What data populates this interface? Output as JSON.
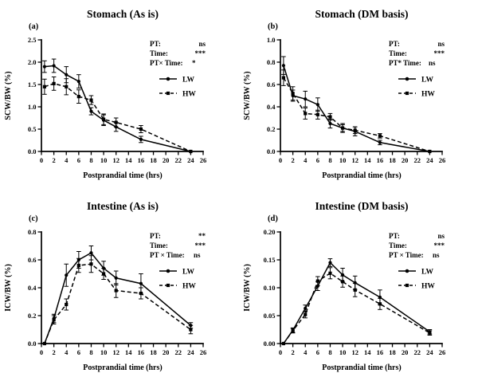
{
  "colors": {
    "line": "#000000",
    "background": "#ffffff"
  },
  "figure": {
    "panels": [
      {
        "letter": "(a)",
        "title": "Stomach (As is)",
        "ylabel": "SCW/BW (%)",
        "xlabel": "Postprandial time (hrs)",
        "stats": [
          {
            "label": "PT:",
            "value": "ns"
          },
          {
            "label": "Time:",
            "value": "***"
          },
          {
            "label": "PT× Time:",
            "value": "*"
          }
        ],
        "legend": [
          {
            "label": "LW"
          },
          {
            "label": "HW"
          }
        ]
      },
      {
        "letter": "(b)",
        "title": "Stomach (DM basis)",
        "ylabel": "SCW/BW (%)",
        "xlabel": "Postprandial time (hrs)",
        "stats": [
          {
            "label": "PT:",
            "value": "ns"
          },
          {
            "label": "Time:",
            "value": "***"
          },
          {
            "label": "PT* Time:",
            "value": "ns"
          }
        ],
        "legend": [
          {
            "label": "LW"
          },
          {
            "label": "HW"
          }
        ]
      },
      {
        "letter": "(c)",
        "title": "Intestine (As is)",
        "ylabel": "ICW/BW (%)",
        "xlabel": "Postprandial time (hrs)",
        "stats": [
          {
            "label": "PT:",
            "value": "**"
          },
          {
            "label": "Time:",
            "value": "***"
          },
          {
            "label": "PT × Time:",
            "value": "ns"
          }
        ],
        "legend": [
          {
            "label": "LW"
          },
          {
            "label": "HW"
          }
        ]
      },
      {
        "letter": "(d)",
        "title": "Intestine (DM basis)",
        "ylabel": "ICW/BW (%)",
        "xlabel": "Postprandial time (hrs)",
        "stats": [
          {
            "label": "PT:",
            "value": "ns"
          },
          {
            "label": "Time:",
            "value": "***"
          },
          {
            "label": "PT × Time:",
            "value": "ns"
          }
        ],
        "legend": [
          {
            "label": "LW"
          },
          {
            "label": "HW"
          }
        ]
      }
    ]
  },
  "chart_data": [
    {
      "type": "line",
      "title": "Stomach (As is)",
      "xlabel": "Postprandial time (hrs)",
      "ylabel": "SCW/BW (%)",
      "xlim": [
        0,
        26
      ],
      "ylim": [
        0,
        2.5
      ],
      "xticks": [
        0,
        2,
        4,
        6,
        8,
        10,
        12,
        14,
        16,
        18,
        20,
        22,
        24,
        26
      ],
      "yticks": [
        0,
        0.5,
        1.0,
        1.5,
        2.0,
        2.5
      ],
      "ytick_labels": [
        "0.0",
        "0.5",
        "1.0",
        "1.5",
        "2.0",
        "2.5"
      ],
      "grid": false,
      "legend_position": "upper right",
      "annotations": {
        "PT": "ns",
        "Time": "***",
        "PTxTime": "*"
      },
      "x": [
        0.5,
        2,
        4,
        6,
        8,
        10,
        12,
        16,
        24
      ],
      "series": [
        {
          "name": "LW",
          "line": "solid",
          "marker": "circle",
          "values": [
            1.9,
            1.92,
            1.72,
            1.57,
            0.9,
            0.7,
            0.55,
            0.27,
            0.0
          ],
          "errors": [
            0.13,
            0.15,
            0.18,
            0.15,
            0.08,
            0.12,
            0.1,
            0.07,
            0.0
          ]
        },
        {
          "name": "HW",
          "line": "dashed",
          "marker": "square",
          "values": [
            1.45,
            1.52,
            1.45,
            1.23,
            1.15,
            0.72,
            0.65,
            0.5,
            0.0
          ],
          "errors": [
            0.17,
            0.15,
            0.18,
            0.15,
            0.1,
            0.12,
            0.1,
            0.08,
            0.0
          ]
        }
      ]
    },
    {
      "type": "line",
      "title": "Stomach (DM basis)",
      "xlabel": "Postprandial time (hrs)",
      "ylabel": "SCW/BW (%)",
      "xlim": [
        0,
        26
      ],
      "ylim": [
        0,
        1.0
      ],
      "xticks": [
        0,
        2,
        4,
        6,
        8,
        10,
        12,
        14,
        16,
        18,
        20,
        22,
        24,
        26
      ],
      "yticks": [
        0,
        0.2,
        0.4,
        0.6,
        0.8,
        1.0
      ],
      "ytick_labels": [
        "0.0",
        "0.2",
        "0.4",
        "0.6",
        "0.8",
        "1.0"
      ],
      "grid": false,
      "legend_position": "upper right",
      "annotations": {
        "PT": "ns",
        "Time": "***",
        "PTxTime": "ns"
      },
      "x": [
        0.5,
        2,
        4,
        6,
        8,
        10,
        12,
        16,
        24
      ],
      "series": [
        {
          "name": "LW",
          "line": "solid",
          "marker": "circle",
          "values": [
            0.77,
            0.5,
            0.47,
            0.42,
            0.25,
            0.21,
            0.18,
            0.08,
            0.0
          ],
          "errors": [
            0.08,
            0.05,
            0.07,
            0.06,
            0.04,
            0.04,
            0.04,
            0.02,
            0.0
          ]
        },
        {
          "name": "HW",
          "line": "dashed",
          "marker": "square",
          "values": [
            0.66,
            0.52,
            0.34,
            0.33,
            0.31,
            0.21,
            0.19,
            0.14,
            0.0
          ],
          "errors": [
            0.07,
            0.06,
            0.05,
            0.04,
            0.03,
            0.03,
            0.03,
            0.02,
            0.0
          ]
        }
      ]
    },
    {
      "type": "line",
      "title": "Intestine (As is)",
      "xlabel": "Postprandial time (hrs)",
      "ylabel": "ICW/BW (%)",
      "xlim": [
        0,
        26
      ],
      "ylim": [
        0,
        0.8
      ],
      "xticks": [
        0,
        2,
        4,
        6,
        8,
        10,
        12,
        14,
        16,
        18,
        20,
        22,
        24,
        26
      ],
      "yticks": [
        0,
        0.2,
        0.4,
        0.6,
        0.8
      ],
      "ytick_labels": [
        "0.0",
        "0.2",
        "0.4",
        "0.6",
        "0.8"
      ],
      "grid": false,
      "legend_position": "upper right",
      "annotations": {
        "PT": "**",
        "Time": "***",
        "PTxTime": "ns"
      },
      "x": [
        0.5,
        2,
        4,
        6,
        8,
        10,
        12,
        16,
        24
      ],
      "series": [
        {
          "name": "LW",
          "line": "solid",
          "marker": "circle",
          "values": [
            0.0,
            0.18,
            0.49,
            0.6,
            0.65,
            0.54,
            0.47,
            0.43,
            0.13
          ],
          "errors": [
            0.0,
            0.03,
            0.08,
            0.06,
            0.05,
            0.05,
            0.05,
            0.07,
            0.02
          ]
        },
        {
          "name": "HW",
          "line": "dashed",
          "marker": "square",
          "values": [
            0.0,
            0.17,
            0.28,
            0.56,
            0.57,
            0.5,
            0.38,
            0.36,
            0.1
          ],
          "errors": [
            0.0,
            0.03,
            0.04,
            0.05,
            0.06,
            0.04,
            0.05,
            0.04,
            0.03
          ]
        }
      ]
    },
    {
      "type": "line",
      "title": "Intestine (DM basis)",
      "xlabel": "Postprandial time (hrs)",
      "ylabel": "ICW/BW (%)",
      "xlim": [
        0,
        26
      ],
      "ylim": [
        0,
        0.2
      ],
      "xticks": [
        0,
        2,
        4,
        6,
        8,
        10,
        12,
        14,
        16,
        18,
        20,
        22,
        24,
        26
      ],
      "yticks": [
        0,
        0.05,
        0.1,
        0.15,
        0.2
      ],
      "ytick_labels": [
        "0.00",
        "0.05",
        "0.10",
        "0.15",
        "0.20"
      ],
      "grid": false,
      "legend_position": "upper right",
      "annotations": {
        "PT": "ns",
        "Time": "***",
        "PTxTime": "ns"
      },
      "x": [
        0.5,
        2,
        4,
        6,
        8,
        10,
        12,
        16,
        24
      ],
      "series": [
        {
          "name": "LW",
          "line": "solid",
          "marker": "circle",
          "values": [
            0.0,
            0.024,
            0.063,
            0.103,
            0.145,
            0.123,
            0.109,
            0.083,
            0.021
          ],
          "errors": [
            0.0,
            0.004,
            0.006,
            0.008,
            0.007,
            0.012,
            0.012,
            0.013,
            0.004
          ]
        },
        {
          "name": "HW",
          "line": "dashed",
          "marker": "square",
          "values": [
            0.0,
            0.023,
            0.052,
            0.112,
            0.126,
            0.111,
            0.096,
            0.071,
            0.019
          ],
          "errors": [
            0.0,
            0.004,
            0.006,
            0.008,
            0.01,
            0.01,
            0.012,
            0.01,
            0.004
          ]
        }
      ]
    }
  ]
}
